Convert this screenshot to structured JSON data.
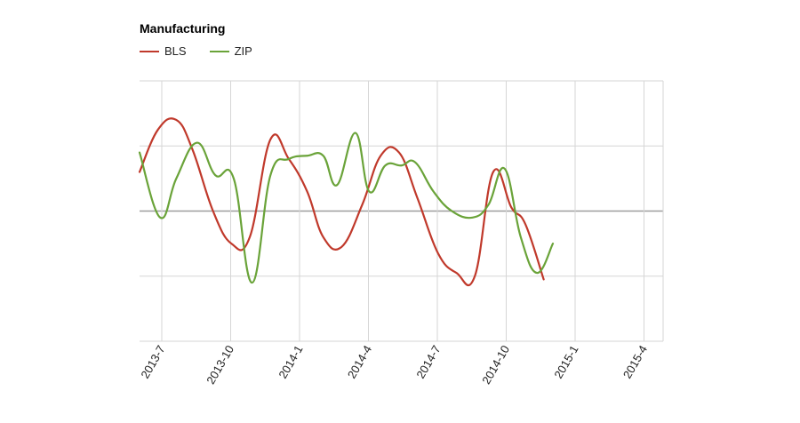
{
  "chart_data": {
    "type": "line",
    "title": "Manufacturing",
    "xlabel": "",
    "ylabel": "",
    "x_tick_labels": [
      "2013-7",
      "2013-10",
      "2014-1",
      "2014-4",
      "2014-7",
      "2014-10",
      "2015-1",
      "2015-4"
    ],
    "grid": true,
    "legend_position": "top-left",
    "series": [
      {
        "name": "BLS",
        "color": "#c0392b",
        "points": [
          {
            "x": 0.0,
            "y": 2.6
          },
          {
            "x": 0.8,
            "y": 3.25
          },
          {
            "x": 1.6,
            "y": 3.4
          },
          {
            "x": 2.3,
            "y": 2.95
          },
          {
            "x": 3.2,
            "y": 2.0
          },
          {
            "x": 4.0,
            "y": 1.5
          },
          {
            "x": 4.8,
            "y": 1.6
          },
          {
            "x": 5.7,
            "y": 3.1
          },
          {
            "x": 6.5,
            "y": 2.8
          },
          {
            "x": 7.3,
            "y": 2.3
          },
          {
            "x": 8.0,
            "y": 1.6
          },
          {
            "x": 8.8,
            "y": 1.45
          },
          {
            "x": 9.7,
            "y": 2.1
          },
          {
            "x": 10.5,
            "y": 2.85
          },
          {
            "x": 11.3,
            "y": 2.9
          },
          {
            "x": 12.1,
            "y": 2.2
          },
          {
            "x": 13.0,
            "y": 1.35
          },
          {
            "x": 13.8,
            "y": 1.05
          },
          {
            "x": 14.6,
            "y": 1.0
          },
          {
            "x": 15.4,
            "y": 2.6
          },
          {
            "x": 16.2,
            "y": 2.05
          },
          {
            "x": 16.8,
            "y": 1.8
          },
          {
            "x": 17.6,
            "y": 0.95
          }
        ]
      },
      {
        "name": "ZIP",
        "color": "#6aa339",
        "points": [
          {
            "x": 0.0,
            "y": 2.9
          },
          {
            "x": 0.9,
            "y": 1.9
          },
          {
            "x": 1.6,
            "y": 2.5
          },
          {
            "x": 2.5,
            "y": 3.05
          },
          {
            "x": 3.3,
            "y": 2.55
          },
          {
            "x": 4.1,
            "y": 2.5
          },
          {
            "x": 4.9,
            "y": 0.9
          },
          {
            "x": 5.7,
            "y": 2.55
          },
          {
            "x": 6.5,
            "y": 2.8
          },
          {
            "x": 7.3,
            "y": 2.85
          },
          {
            "x": 8.0,
            "y": 2.85
          },
          {
            "x": 8.6,
            "y": 2.4
          },
          {
            "x": 9.4,
            "y": 3.2
          },
          {
            "x": 10.0,
            "y": 2.3
          },
          {
            "x": 10.7,
            "y": 2.7
          },
          {
            "x": 11.4,
            "y": 2.7
          },
          {
            "x": 12.0,
            "y": 2.75
          },
          {
            "x": 12.8,
            "y": 2.3
          },
          {
            "x": 13.6,
            "y": 2.0
          },
          {
            "x": 14.5,
            "y": 1.9
          },
          {
            "x": 15.2,
            "y": 2.1
          },
          {
            "x": 15.9,
            "y": 2.65
          },
          {
            "x": 16.6,
            "y": 1.6
          },
          {
            "x": 17.3,
            "y": 1.05
          },
          {
            "x": 18.0,
            "y": 1.5
          }
        ]
      }
    ]
  }
}
